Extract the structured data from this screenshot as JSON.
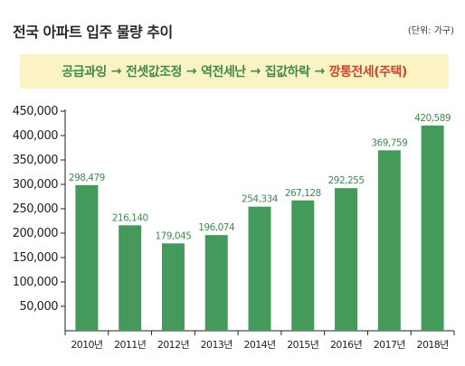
{
  "title": "전국 아파트 입주 물량 추이",
  "unit": "(단위: 가구)",
  "banner": {
    "steps": [
      "공급과잉",
      "전셋값조정",
      "역전세난",
      "집값하락",
      "깡통전세(주택)"
    ],
    "arrow": "→"
  },
  "colors": {
    "bar": "#44995b",
    "label": "#3f8a4e",
    "accent": "#c9462b",
    "banner_bg": "#fbf3c4"
  },
  "chart_data": {
    "type": "bar",
    "title": "전국 아파트 입주 물량 추이",
    "xlabel": "",
    "ylabel": "",
    "categories": [
      "2010년",
      "2011년",
      "2012년",
      "2013년",
      "2014년",
      "2015년",
      "2016년",
      "2017년",
      "2018년"
    ],
    "values": [
      298479,
      216140,
      179045,
      196074,
      254334,
      267128,
      292255,
      369759,
      420589
    ],
    "value_labels": [
      "298,479",
      "216,140",
      "179,045",
      "196,074",
      "254,334",
      "267,128",
      "292,255",
      "369,759",
      "420,589"
    ],
    "y_ticks": [
      50000,
      100000,
      150000,
      200000,
      250000,
      300000,
      350000,
      400000,
      450000
    ],
    "y_tick_labels": [
      "50,000",
      "100,000",
      "150,000",
      "200,000",
      "250,000",
      "300,000",
      "350,000",
      "400,000",
      "450,000"
    ],
    "ylim": [
      0,
      450000
    ],
    "grid": false,
    "legend": "none"
  }
}
